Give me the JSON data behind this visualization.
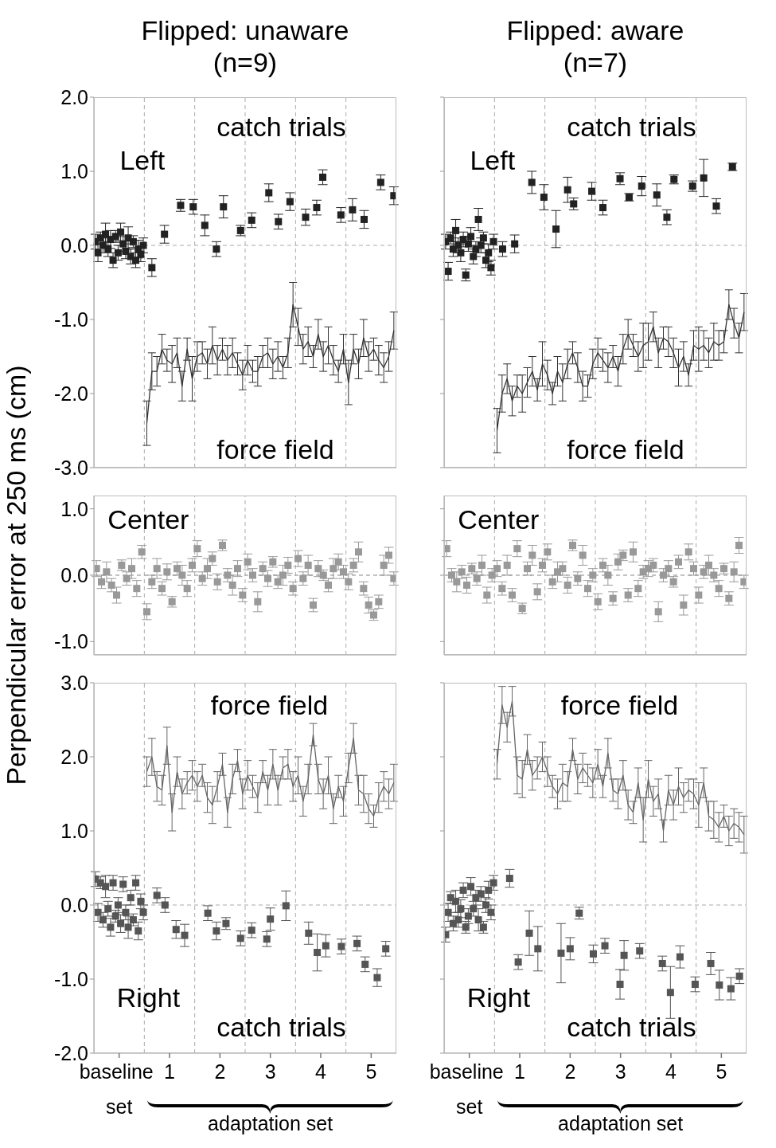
{
  "chart_data": [
    {
      "type": "scatter",
      "title": "Flipped: unaware (n=9)",
      "tick_labels": "y",
      "xlim": [
        -0.5,
        5.5
      ],
      "ylim": [
        -3,
        2
      ],
      "yticks": [
        {
          "value": -3,
          "label": "-3.0"
        },
        {
          "value": -2,
          "label": "-2.0"
        },
        {
          "value": -1,
          "label": "-1.0"
        },
        {
          "value": 0,
          "label": "0.0"
        },
        {
          "value": 1,
          "label": "1.0"
        },
        {
          "value": 2,
          "label": "2.0"
        }
      ],
      "ref_lines": [
        {
          "axis": "y",
          "value": 0,
          "color": "#aaaaaa",
          "line_style": "dashed"
        },
        {
          "axis": "x",
          "value": 0.5,
          "color": "#aaaaaa",
          "line_style": "dashed"
        },
        {
          "axis": "x",
          "value": 1.5,
          "color": "#aaaaaa",
          "line_style": "dashed"
        },
        {
          "axis": "x",
          "value": 2.5,
          "color": "#aaaaaa",
          "line_style": "dashed"
        },
        {
          "axis": "x",
          "value": 3.5,
          "color": "#aaaaaa",
          "line_style": "dashed"
        },
        {
          "axis": "x",
          "value": 4.5,
          "color": "#aaaaaa",
          "line_style": "dashed"
        }
      ],
      "annotations": [
        "catch trials",
        "Left",
        "force field"
      ],
      "series": [
        {
          "marker": "square",
          "color": "#222222",
          "x": [
            -0.47,
            -0.42,
            -0.37,
            -0.32,
            -0.27,
            -0.22,
            -0.17,
            -0.12,
            -0.07,
            -0.02,
            0.03,
            0.08,
            0.13,
            0.18,
            0.23,
            0.28,
            0.33,
            0.38,
            0.43,
            0.48,
            0.65,
            0.9,
            1.22,
            1.47,
            1.7,
            1.93,
            2.07,
            2.41,
            2.63,
            2.97,
            3.16,
            3.39,
            3.7,
            3.92,
            4.04,
            4.4,
            4.63,
            4.86,
            5.19,
            5.45
          ],
          "values": [
            0.05,
            -0.1,
            0.1,
            0.0,
            0.15,
            -0.05,
            0.08,
            -0.2,
            0.12,
            -0.1,
            0.18,
            0.02,
            -0.08,
            0.1,
            -0.15,
            0.05,
            -0.2,
            -0.05,
            -0.12,
            0.0,
            -0.3,
            0.15,
            0.54,
            0.52,
            0.27,
            -0.05,
            0.52,
            0.2,
            0.34,
            0.71,
            0.32,
            0.59,
            0.38,
            0.51,
            0.92,
            0.41,
            0.48,
            0.35,
            0.85,
            0.67
          ],
          "errors": [
            0.1,
            0.12,
            0.08,
            0.1,
            0.15,
            0.1,
            0.12,
            0.1,
            0.08,
            0.1,
            0.12,
            0.1,
            0.1,
            0.15,
            0.1,
            0.08,
            0.1,
            0.12,
            0.1,
            0.1,
            0.12,
            0.12,
            0.08,
            0.1,
            0.14,
            0.1,
            0.15,
            0.07,
            0.1,
            0.12,
            0.1,
            0.12,
            0.11,
            0.1,
            0.1,
            0.1,
            0.15,
            0.12,
            0.1,
            0.12
          ]
        },
        {
          "type": "line",
          "marker": "none",
          "color": "#333333",
          "x": [
            0.55,
            0.65,
            0.75,
            0.85,
            0.95,
            1.05,
            1.15,
            1.25,
            1.35,
            1.45,
            1.55,
            1.65,
            1.75,
            1.85,
            1.95,
            2.05,
            2.15,
            2.25,
            2.35,
            2.45,
            2.55,
            2.65,
            2.75,
            2.85,
            2.95,
            3.05,
            3.15,
            3.25,
            3.35,
            3.45,
            3.55,
            3.65,
            3.75,
            3.85,
            3.95,
            4.05,
            4.15,
            4.25,
            4.35,
            4.45,
            4.55,
            4.65,
            4.75,
            4.85,
            4.95,
            5.05,
            5.15,
            5.25,
            5.35,
            5.45
          ],
          "values": [
            -2.4,
            -1.7,
            -1.7,
            -1.4,
            -1.55,
            -1.6,
            -1.45,
            -1.9,
            -1.4,
            -1.8,
            -1.5,
            -1.45,
            -1.6,
            -1.35,
            -1.55,
            -1.4,
            -1.55,
            -1.45,
            -1.6,
            -1.75,
            -1.55,
            -1.7,
            -1.7,
            -1.5,
            -1.45,
            -1.6,
            -1.5,
            -1.65,
            -1.45,
            -0.8,
            -1.1,
            -1.4,
            -1.3,
            -1.5,
            -1.2,
            -1.5,
            -1.35,
            -1.55,
            -1.7,
            -1.4,
            -1.85,
            -1.4,
            -1.6,
            -1.25,
            -1.5,
            -1.4,
            -1.55,
            -1.65,
            -1.5,
            -1.15
          ],
          "errors": [
            0.3,
            0.25,
            0.2,
            0.2,
            0.15,
            0.25,
            0.2,
            0.2,
            0.15,
            0.3,
            0.2,
            0.15,
            0.2,
            0.25,
            0.2,
            0.15,
            0.2,
            0.2,
            0.15,
            0.2,
            0.2,
            0.15,
            0.2,
            0.15,
            0.2,
            0.2,
            0.2,
            0.15,
            0.2,
            0.3,
            0.25,
            0.2,
            0.2,
            0.15,
            0.2,
            0.2,
            0.25,
            0.2,
            0.15,
            0.2,
            0.3,
            0.2,
            0.2,
            0.25,
            0.2,
            0.15,
            0.2,
            0.2,
            0.2,
            0.25
          ]
        }
      ]
    },
    {
      "type": "scatter",
      "title": "Flipped: aware (n=7)",
      "tick_labels": false,
      "xlim": [
        -0.5,
        5.5
      ],
      "ylim": [
        -3,
        2
      ],
      "yticks": [
        {
          "value": -3,
          "label": null
        },
        {
          "value": -2,
          "label": null
        },
        {
          "value": -1,
          "label": null
        },
        {
          "value": 0,
          "label": null
        },
        {
          "value": 1,
          "label": null
        },
        {
          "value": 2,
          "label": null
        }
      ],
      "ref_lines": [
        {
          "axis": "y",
          "value": 0,
          "color": "#aaaaaa",
          "line_style": "dashed"
        },
        {
          "axis": "x",
          "value": 0.5,
          "color": "#aaaaaa",
          "line_style": "dashed"
        },
        {
          "axis": "x",
          "value": 1.5,
          "color": "#aaaaaa",
          "line_style": "dashed"
        },
        {
          "axis": "x",
          "value": 2.5,
          "color": "#aaaaaa",
          "line_style": "dashed"
        },
        {
          "axis": "x",
          "value": 3.5,
          "color": "#aaaaaa",
          "line_style": "dashed"
        },
        {
          "axis": "x",
          "value": 4.5,
          "color": "#aaaaaa",
          "line_style": "dashed"
        }
      ],
      "annotations": [
        "catch trials",
        "Left",
        "force field"
      ],
      "series": [
        {
          "marker": "square",
          "color": "#222222",
          "x": [
            -0.47,
            -0.42,
            -0.37,
            -0.32,
            -0.27,
            -0.22,
            -0.17,
            -0.12,
            -0.07,
            -0.02,
            0.03,
            0.08,
            0.13,
            0.18,
            0.23,
            0.28,
            0.33,
            0.38,
            0.43,
            0.48,
            0.66,
            0.9,
            1.24,
            1.48,
            1.72,
            1.95,
            2.07,
            2.43,
            2.65,
            2.99,
            3.17,
            3.42,
            3.72,
            3.92,
            4.06,
            4.43,
            4.65,
            4.9,
            5.22
          ],
          "values": [
            0.05,
            -0.35,
            0.1,
            -0.05,
            0.2,
            0.0,
            -0.1,
            0.08,
            -0.4,
            0.02,
            0.12,
            -0.15,
            -0.05,
            0.35,
            0.0,
            0.1,
            -0.2,
            -0.1,
            -0.3,
            0.05,
            -0.05,
            0.02,
            0.85,
            0.65,
            0.22,
            0.75,
            0.56,
            0.73,
            0.51,
            0.9,
            0.65,
            0.8,
            0.68,
            0.38,
            0.89,
            0.8,
            0.91,
            0.53,
            1.06
          ],
          "errors": [
            0.1,
            0.12,
            0.08,
            0.1,
            0.15,
            0.1,
            0.12,
            0.1,
            0.08,
            0.1,
            0.12,
            0.1,
            0.1,
            0.15,
            0.1,
            0.08,
            0.1,
            0.12,
            0.1,
            0.1,
            0.1,
            0.12,
            0.15,
            0.17,
            0.25,
            0.17,
            0.08,
            0.12,
            0.1,
            0.08,
            0.05,
            0.13,
            0.15,
            0.1,
            0.06,
            0.07,
            0.25,
            0.1,
            0.05
          ]
        },
        {
          "type": "line",
          "marker": "none",
          "color": "#333333",
          "x": [
            0.55,
            0.65,
            0.75,
            0.85,
            0.95,
            1.05,
            1.15,
            1.25,
            1.35,
            1.45,
            1.55,
            1.65,
            1.75,
            1.85,
            1.95,
            2.05,
            2.15,
            2.25,
            2.35,
            2.45,
            2.55,
            2.65,
            2.75,
            2.85,
            2.95,
            3.05,
            3.15,
            3.25,
            3.35,
            3.45,
            3.55,
            3.65,
            3.75,
            3.85,
            3.95,
            4.05,
            4.15,
            4.25,
            4.35,
            4.45,
            4.55,
            4.65,
            4.75,
            4.85,
            4.95,
            5.05,
            5.15,
            5.25,
            5.35,
            5.45
          ],
          "values": [
            -2.5,
            -2.0,
            -1.8,
            -2.1,
            -1.9,
            -2.0,
            -1.85,
            -1.7,
            -1.95,
            -1.6,
            -1.75,
            -2.0,
            -1.7,
            -1.85,
            -1.6,
            -1.45,
            -1.65,
            -1.9,
            -1.9,
            -1.6,
            -1.45,
            -1.55,
            -1.65,
            -1.5,
            -1.7,
            -1.4,
            -1.2,
            -1.35,
            -1.5,
            -1.35,
            -1.3,
            -1.1,
            -1.45,
            -1.25,
            -1.3,
            -1.45,
            -1.65,
            -1.5,
            -1.75,
            -1.35,
            -1.4,
            -1.35,
            -1.45,
            -1.3,
            -1.35,
            -1.3,
            -0.8,
            -1.05,
            -1.25,
            -0.9
          ],
          "errors": [
            0.3,
            0.25,
            0.2,
            0.2,
            0.15,
            0.25,
            0.2,
            0.2,
            0.15,
            0.3,
            0.2,
            0.15,
            0.2,
            0.25,
            0.2,
            0.15,
            0.2,
            0.2,
            0.15,
            0.2,
            0.2,
            0.15,
            0.2,
            0.15,
            0.2,
            0.2,
            0.2,
            0.15,
            0.2,
            0.3,
            0.25,
            0.2,
            0.2,
            0.15,
            0.2,
            0.2,
            0.25,
            0.2,
            0.15,
            0.2,
            0.3,
            0.2,
            0.2,
            0.25,
            0.2,
            0.15,
            0.2,
            0.2,
            0.2,
            0.25
          ]
        }
      ]
    },
    {
      "type": "scatter",
      "ylabel": "Perpendicular error at 250 ms (cm)",
      "tick_labels": "y",
      "xlim": [
        -0.5,
        5.5
      ],
      "ylim": [
        -1.2,
        1.2
      ],
      "yticks": [
        {
          "value": -1,
          "label": "-1.0"
        },
        {
          "value": 0,
          "label": "0.0"
        },
        {
          "value": 1,
          "label": "1.0"
        }
      ],
      "ref_lines": [
        {
          "axis": "y",
          "value": 0,
          "color": "#888888",
          "line_style": "dashed"
        },
        {
          "axis": "x",
          "value": 0.5,
          "color": "#aaaaaa",
          "line_style": "dashed"
        },
        {
          "axis": "x",
          "value": 1.5,
          "color": "#aaaaaa",
          "line_style": "dashed"
        },
        {
          "axis": "x",
          "value": 2.5,
          "color": "#aaaaaa",
          "line_style": "dashed"
        },
        {
          "axis": "x",
          "value": 3.5,
          "color": "#aaaaaa",
          "line_style": "dashed"
        },
        {
          "axis": "x",
          "value": 4.5,
          "color": "#aaaaaa",
          "line_style": "dashed"
        }
      ],
      "annotations": [
        "Center"
      ],
      "series": [
        {
          "marker": "square",
          "color": "#999999",
          "x": [
            -0.45,
            -0.35,
            -0.25,
            -0.15,
            -0.05,
            0.05,
            0.15,
            0.25,
            0.35,
            0.45,
            0.55,
            0.65,
            0.75,
            0.85,
            0.95,
            1.05,
            1.15,
            1.25,
            1.35,
            1.45,
            1.55,
            1.65,
            1.75,
            1.85,
            1.95,
            2.05,
            2.15,
            2.25,
            2.35,
            2.45,
            2.55,
            2.65,
            2.75,
            2.85,
            2.95,
            3.05,
            3.15,
            3.25,
            3.35,
            3.45,
            3.55,
            3.65,
            3.75,
            3.85,
            3.95,
            4.05,
            4.15,
            4.25,
            4.35,
            4.45,
            4.55,
            4.65,
            4.75,
            4.85,
            4.95,
            5.05,
            5.15,
            5.25,
            5.35,
            5.45
          ],
          "values": [
            0.1,
            -0.1,
            0.05,
            -0.15,
            -0.3,
            0.15,
            -0.05,
            0.1,
            -0.2,
            0.35,
            -0.55,
            -0.1,
            0.1,
            -0.2,
            0.05,
            -0.4,
            0.1,
            0.0,
            -0.2,
            0.15,
            0.4,
            -0.05,
            0.1,
            0.25,
            -0.1,
            0.45,
            0.0,
            -0.15,
            0.1,
            -0.3,
            0.2,
            0.0,
            -0.4,
            0.1,
            -0.05,
            0.2,
            -0.1,
            0.0,
            0.15,
            -0.2,
            0.25,
            -0.05,
            0.15,
            -0.45,
            0.1,
            0.0,
            -0.15,
            0.1,
            0.2,
            0.05,
            -0.1,
            0.15,
            0.35,
            -0.2,
            -0.45,
            -0.6,
            -0.4,
            0.15,
            0.3,
            -0.05
          ],
          "errors": [
            0.12,
            0.1,
            0.15,
            0.1,
            0.12,
            0.08,
            0.1,
            0.15,
            0.12,
            0.1,
            0.12,
            0.1,
            0.15,
            0.1,
            0.12,
            0.08,
            0.1,
            0.15,
            0.12,
            0.1,
            0.12,
            0.1,
            0.15,
            0.1,
            0.12,
            0.08,
            0.1,
            0.15,
            0.12,
            0.1,
            0.12,
            0.1,
            0.15,
            0.1,
            0.12,
            0.08,
            0.1,
            0.15,
            0.12,
            0.1,
            0.12,
            0.1,
            0.15,
            0.1,
            0.12,
            0.08,
            0.1,
            0.15,
            0.12,
            0.1,
            0.12,
            0.1,
            0.15,
            0.1,
            0.12,
            0.08,
            0.1,
            0.15,
            0.12,
            0.1
          ]
        }
      ]
    },
    {
      "type": "scatter",
      "tick_labels": false,
      "xlim": [
        -0.5,
        5.5
      ],
      "ylim": [
        -1.2,
        1.2
      ],
      "yticks": [
        {
          "value": -1,
          "label": null
        },
        {
          "value": 0,
          "label": null
        },
        {
          "value": 1,
          "label": null
        }
      ],
      "ref_lines": [
        {
          "axis": "y",
          "value": 0,
          "color": "#888888",
          "line_style": "dashed"
        },
        {
          "axis": "x",
          "value": 0.5,
          "color": "#aaaaaa",
          "line_style": "dashed"
        },
        {
          "axis": "x",
          "value": 1.5,
          "color": "#aaaaaa",
          "line_style": "dashed"
        },
        {
          "axis": "x",
          "value": 2.5,
          "color": "#aaaaaa",
          "line_style": "dashed"
        },
        {
          "axis": "x",
          "value": 3.5,
          "color": "#aaaaaa",
          "line_style": "dashed"
        },
        {
          "axis": "x",
          "value": 4.5,
          "color": "#aaaaaa",
          "line_style": "dashed"
        }
      ],
      "annotations": [
        "Center"
      ],
      "series": [
        {
          "marker": "square",
          "color": "#999999",
          "x": [
            -0.45,
            -0.35,
            -0.25,
            -0.15,
            -0.05,
            0.05,
            0.15,
            0.25,
            0.35,
            0.45,
            0.55,
            0.65,
            0.75,
            0.85,
            0.95,
            1.05,
            1.15,
            1.25,
            1.35,
            1.45,
            1.55,
            1.65,
            1.75,
            1.85,
            1.95,
            2.05,
            2.15,
            2.25,
            2.35,
            2.45,
            2.55,
            2.65,
            2.75,
            2.85,
            2.95,
            3.05,
            3.15,
            3.25,
            3.35,
            3.45,
            3.55,
            3.65,
            3.75,
            3.85,
            3.95,
            4.05,
            4.15,
            4.25,
            4.35,
            4.45,
            4.55,
            4.65,
            4.75,
            4.85,
            4.95,
            5.05,
            5.15,
            5.25,
            5.35,
            5.45
          ],
          "values": [
            0.4,
            0.0,
            -0.1,
            0.05,
            -0.15,
            0.1,
            -0.05,
            0.15,
            -0.3,
            0.0,
            0.1,
            -0.2,
            0.15,
            -0.3,
            0.4,
            -0.5,
            0.1,
            0.3,
            -0.25,
            0.15,
            0.35,
            -0.1,
            0.05,
            0.1,
            -0.15,
            0.45,
            -0.05,
            0.3,
            -0.2,
            0.0,
            -0.4,
            0.15,
            0.0,
            -0.35,
            0.2,
            0.3,
            -0.3,
            0.35,
            -0.2,
            0.05,
            0.1,
            0.15,
            -0.55,
            0.0,
            0.1,
            -0.1,
            0.2,
            -0.45,
            0.35,
            0.1,
            -0.3,
            0.05,
            0.15,
            0.0,
            -0.2,
            0.1,
            -0.35,
            0.05,
            0.45,
            -0.1
          ],
          "errors": [
            0.12,
            0.1,
            0.15,
            0.1,
            0.12,
            0.08,
            0.1,
            0.15,
            0.12,
            0.1,
            0.12,
            0.1,
            0.15,
            0.1,
            0.12,
            0.08,
            0.1,
            0.15,
            0.12,
            0.1,
            0.12,
            0.1,
            0.15,
            0.1,
            0.12,
            0.08,
            0.1,
            0.15,
            0.12,
            0.1,
            0.12,
            0.1,
            0.15,
            0.1,
            0.12,
            0.08,
            0.1,
            0.15,
            0.12,
            0.1,
            0.12,
            0.1,
            0.15,
            0.1,
            0.12,
            0.08,
            0.1,
            0.15,
            0.12,
            0.1,
            0.12,
            0.1,
            0.15,
            0.1,
            0.12,
            0.08,
            0.1,
            0.15,
            0.12,
            0.1
          ]
        }
      ]
    },
    {
      "type": "scatter",
      "xlabel": "adaptation set",
      "xlim": [
        -0.5,
        5.5
      ],
      "xticks": [
        {
          "value": 0,
          "label": "baseline set"
        },
        1,
        2,
        3,
        4,
        5
      ],
      "ylim": [
        -2,
        3
      ],
      "yticks": [
        {
          "value": -2,
          "label": "-2.0"
        },
        {
          "value": -1,
          "label": "-1.0"
        },
        {
          "value": 0,
          "label": "0.0"
        },
        {
          "value": 1,
          "label": "1.0"
        },
        {
          "value": 2,
          "label": "2.0"
        },
        {
          "value": 3,
          "label": "3.0"
        }
      ],
      "ref_lines": [
        {
          "axis": "y",
          "value": 0,
          "color": "#aaaaaa",
          "line_style": "dashed"
        },
        {
          "axis": "x",
          "value": 0.5,
          "color": "#aaaaaa",
          "line_style": "dashed"
        },
        {
          "axis": "x",
          "value": 1.5,
          "color": "#aaaaaa",
          "line_style": "dashed"
        },
        {
          "axis": "x",
          "value": 2.5,
          "color": "#aaaaaa",
          "line_style": "dashed"
        },
        {
          "axis": "x",
          "value": 3.5,
          "color": "#aaaaaa",
          "line_style": "dashed"
        },
        {
          "axis": "x",
          "value": 4.5,
          "color": "#aaaaaa",
          "line_style": "dashed"
        }
      ],
      "annotations": [
        "force field",
        "Right",
        "catch trials"
      ],
      "series": [
        {
          "marker": "square",
          "color": "#555555",
          "x": [
            -0.47,
            -0.42,
            -0.37,
            -0.32,
            -0.27,
            -0.22,
            -0.17,
            -0.12,
            -0.07,
            -0.02,
            0.03,
            0.08,
            0.13,
            0.18,
            0.23,
            0.28,
            0.33,
            0.38,
            0.43,
            0.48,
            0.75,
            0.91,
            1.13,
            1.3,
            1.76,
            1.93,
            2.12,
            2.41,
            2.63,
            2.93,
            3.0,
            3.31,
            3.76,
            3.93,
            4.1,
            4.41,
            4.72,
            4.88,
            5.12,
            5.29
          ],
          "values": [
            0.35,
            -0.1,
            0.3,
            -0.2,
            0.25,
            -0.05,
            -0.3,
            0.3,
            -0.15,
            0.0,
            -0.25,
            0.28,
            -0.1,
            -0.3,
            0.1,
            -0.2,
            0.3,
            -0.35,
            0.05,
            -0.1,
            0.13,
            0.0,
            -0.33,
            -0.41,
            -0.11,
            -0.35,
            -0.25,
            -0.45,
            -0.34,
            -0.46,
            -0.19,
            -0.01,
            -0.38,
            -0.64,
            -0.55,
            -0.56,
            -0.52,
            -0.8,
            -0.98,
            -0.59
          ],
          "errors": [
            0.1,
            0.12,
            0.08,
            0.1,
            0.15,
            0.1,
            0.12,
            0.1,
            0.08,
            0.1,
            0.12,
            0.1,
            0.1,
            0.15,
            0.1,
            0.08,
            0.1,
            0.12,
            0.1,
            0.1,
            0.1,
            0.1,
            0.12,
            0.15,
            0.1,
            0.12,
            0.08,
            0.1,
            0.1,
            0.1,
            0.15,
            0.2,
            0.15,
            0.25,
            0.15,
            0.1,
            0.1,
            0.1,
            0.12,
            0.1
          ]
        },
        {
          "type": "line",
          "marker": "none",
          "color": "#666666",
          "x": [
            0.55,
            0.65,
            0.75,
            0.85,
            0.95,
            1.05,
            1.15,
            1.25,
            1.35,
            1.45,
            1.55,
            1.65,
            1.75,
            1.85,
            1.95,
            2.05,
            2.15,
            2.25,
            2.35,
            2.45,
            2.55,
            2.65,
            2.75,
            2.85,
            2.95,
            3.05,
            3.15,
            3.25,
            3.35,
            3.45,
            3.55,
            3.65,
            3.75,
            3.85,
            3.95,
            4.05,
            4.15,
            4.25,
            4.35,
            4.45,
            4.55,
            4.65,
            4.75,
            4.85,
            4.95,
            5.05,
            5.15,
            5.25,
            5.35,
            5.45
          ],
          "values": [
            1.8,
            2.0,
            1.6,
            1.55,
            2.15,
            1.25,
            1.8,
            1.5,
            1.65,
            1.75,
            1.6,
            1.75,
            1.45,
            1.35,
            1.6,
            1.9,
            1.25,
            1.7,
            1.95,
            1.5,
            1.75,
            1.6,
            1.45,
            1.8,
            1.55,
            1.9,
            1.55,
            1.85,
            1.9,
            1.6,
            1.75,
            1.4,
            1.7,
            2.3,
            1.7,
            1.5,
            1.75,
            1.3,
            1.6,
            1.4,
            1.85,
            2.25,
            1.55,
            1.5,
            1.3,
            1.2,
            1.45,
            1.6,
            1.5,
            1.65
          ],
          "errors": [
            0.2,
            0.25,
            0.2,
            0.2,
            0.25,
            0.25,
            0.2,
            0.2,
            0.15,
            0.2,
            0.2,
            0.15,
            0.2,
            0.25,
            0.2,
            0.15,
            0.2,
            0.2,
            0.15,
            0.2,
            0.2,
            0.15,
            0.2,
            0.15,
            0.2,
            0.2,
            0.2,
            0.15,
            0.2,
            0.2,
            0.25,
            0.2,
            0.2,
            0.15,
            0.2,
            0.2,
            0.25,
            0.2,
            0.15,
            0.2,
            0.2,
            0.2,
            0.2,
            0.25,
            0.2,
            0.15,
            0.2,
            0.2,
            0.2,
            0.25
          ]
        }
      ]
    },
    {
      "type": "scatter",
      "xlabel": "adaptation set",
      "tick_labels": "x",
      "xlim": [
        -0.5,
        5.5
      ],
      "xticks": [
        {
          "value": 0,
          "label": "baseline set"
        },
        1,
        2,
        3,
        4,
        5
      ],
      "ylim": [
        -2,
        3
      ],
      "yticks": [
        {
          "value": -2,
          "label": null
        },
        {
          "value": -1,
          "label": null
        },
        {
          "value": 0,
          "label": null
        },
        {
          "value": 1,
          "label": null
        },
        {
          "value": 2,
          "label": null
        },
        {
          "value": 3,
          "label": null
        }
      ],
      "ref_lines": [
        {
          "axis": "y",
          "value": 0,
          "color": "#aaaaaa",
          "line_style": "dashed"
        },
        {
          "axis": "x",
          "value": 0.5,
          "color": "#aaaaaa",
          "line_style": "dashed"
        },
        {
          "axis": "x",
          "value": 1.5,
          "color": "#aaaaaa",
          "line_style": "dashed"
        },
        {
          "axis": "x",
          "value": 2.5,
          "color": "#aaaaaa",
          "line_style": "dashed"
        },
        {
          "axis": "x",
          "value": 3.5,
          "color": "#aaaaaa",
          "line_style": "dashed"
        },
        {
          "axis": "x",
          "value": 4.5,
          "color": "#aaaaaa",
          "line_style": "dashed"
        }
      ],
      "annotations": [
        "force field",
        "Right",
        "catch trials"
      ],
      "series": [
        {
          "marker": "square",
          "color": "#555555",
          "x": [
            -0.47,
            -0.42,
            -0.37,
            -0.32,
            -0.27,
            -0.22,
            -0.17,
            -0.12,
            -0.07,
            -0.02,
            0.03,
            0.08,
            0.13,
            0.18,
            0.23,
            0.28,
            0.33,
            0.38,
            0.43,
            0.48,
            0.8,
            0.97,
            1.19,
            1.36,
            1.82,
            2.0,
            2.18,
            2.46,
            2.69,
            2.99,
            3.07,
            3.38,
            3.83,
            3.99,
            4.18,
            4.48,
            4.79,
            4.96,
            5.19,
            5.36
          ],
          "values": [
            -0.4,
            -0.1,
            0.1,
            -0.25,
            0.05,
            -0.2,
            -0.05,
            0.2,
            -0.3,
            -0.15,
            0.25,
            -0.05,
            0.1,
            -0.2,
            0.15,
            -0.3,
            0.0,
            0.2,
            -0.1,
            0.3,
            0.36,
            -0.77,
            -0.38,
            -0.59,
            -0.65,
            -0.59,
            -0.11,
            -0.66,
            -0.55,
            -1.07,
            -0.68,
            -0.62,
            -0.79,
            -1.18,
            -0.7,
            -1.07,
            -0.79,
            -1.08,
            -1.13,
            -0.96
          ],
          "errors": [
            0.1,
            0.12,
            0.08,
            0.1,
            0.15,
            0.1,
            0.12,
            0.1,
            0.08,
            0.1,
            0.12,
            0.1,
            0.1,
            0.15,
            0.1,
            0.08,
            0.1,
            0.12,
            0.1,
            0.1,
            0.12,
            0.1,
            0.3,
            0.3,
            0.4,
            0.15,
            0.08,
            0.12,
            0.1,
            0.2,
            0.2,
            0.1,
            0.1,
            0.35,
            0.15,
            0.1,
            0.15,
            0.2,
            0.15,
            0.1
          ]
        },
        {
          "type": "line",
          "marker": "none",
          "color": "#666666",
          "x": [
            0.55,
            0.65,
            0.75,
            0.85,
            0.95,
            1.05,
            1.15,
            1.25,
            1.35,
            1.45,
            1.55,
            1.65,
            1.75,
            1.85,
            1.95,
            2.05,
            2.15,
            2.25,
            2.35,
            2.45,
            2.55,
            2.65,
            2.75,
            2.85,
            2.95,
            3.05,
            3.15,
            3.25,
            3.35,
            3.45,
            3.55,
            3.65,
            3.75,
            3.85,
            3.95,
            4.05,
            4.15,
            4.25,
            4.35,
            4.45,
            4.55,
            4.65,
            4.75,
            4.85,
            4.95,
            5.05,
            5.15,
            5.25,
            5.35,
            5.45
          ],
          "values": [
            1.9,
            2.7,
            2.4,
            2.75,
            1.75,
            1.7,
            2.1,
            1.75,
            1.85,
            2.0,
            1.8,
            1.6,
            1.5,
            1.65,
            1.6,
            2.1,
            1.7,
            1.85,
            1.75,
            1.65,
            1.9,
            1.6,
            2.05,
            1.55,
            1.5,
            1.75,
            1.35,
            1.25,
            1.65,
            1.15,
            1.7,
            1.4,
            1.5,
            1.0,
            1.55,
            1.35,
            1.6,
            1.45,
            1.55,
            1.5,
            1.35,
            1.65,
            1.2,
            1.15,
            1.05,
            1.2,
            1.0,
            1.1,
            1.05,
            0.95
          ],
          "errors": [
            0.2,
            0.25,
            0.2,
            0.2,
            0.25,
            0.25,
            0.2,
            0.2,
            0.15,
            0.2,
            0.2,
            0.15,
            0.2,
            0.25,
            0.2,
            0.15,
            0.2,
            0.2,
            0.15,
            0.2,
            0.2,
            0.15,
            0.2,
            0.15,
            0.2,
            0.2,
            0.2,
            0.15,
            0.2,
            0.3,
            0.25,
            0.2,
            0.2,
            0.15,
            0.2,
            0.2,
            0.25,
            0.2,
            0.15,
            0.2,
            0.3,
            0.2,
            0.2,
            0.25,
            0.2,
            0.15,
            0.2,
            0.2,
            0.2,
            0.25
          ]
        }
      ]
    }
  ]
}
